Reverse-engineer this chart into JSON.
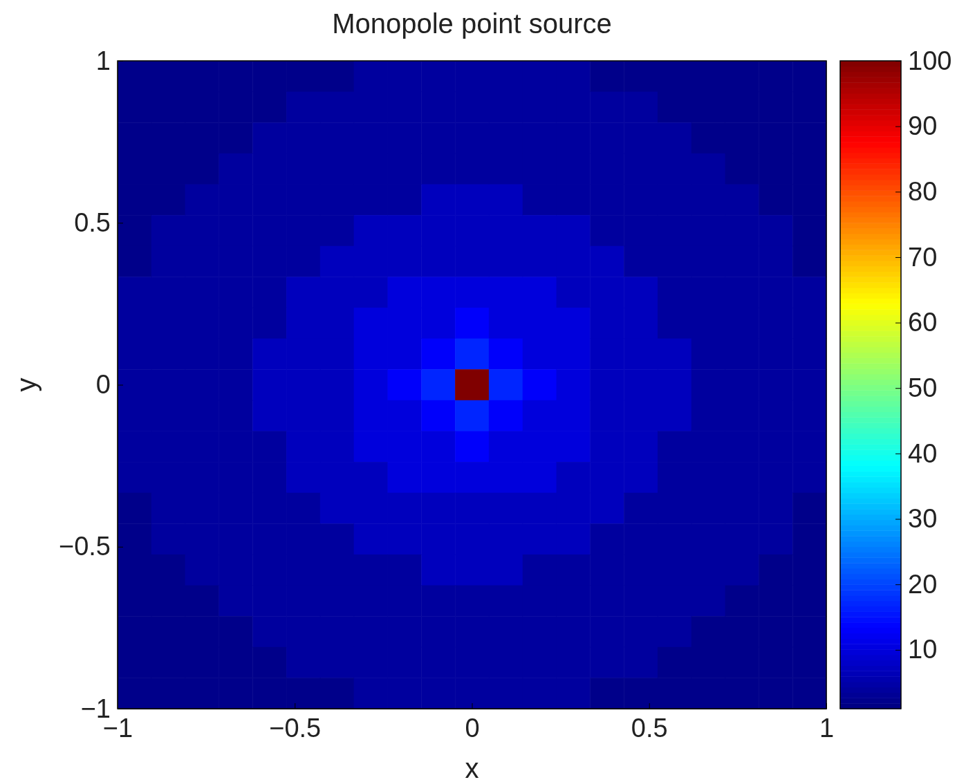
{
  "chart_data": {
    "type": "heatmap",
    "title": "Monopole point source",
    "xlabel": "x",
    "ylabel": "y",
    "xlim": [
      -1,
      1
    ],
    "ylim": [
      -1,
      1
    ],
    "xticks": [
      {
        "value": -1,
        "label": "−1"
      },
      {
        "value": -0.5,
        "label": "−0.5"
      },
      0,
      0.5,
      1
    ],
    "yticks": [
      {
        "value": -1,
        "label": "−1"
      },
      {
        "value": -0.5,
        "label": "−0.5"
      },
      0,
      0.5,
      1
    ],
    "clim": [
      1,
      100
    ],
    "cticks": [
      10,
      20,
      30,
      40,
      50,
      60,
      70,
      80,
      90,
      100
    ],
    "cells": [
      [
        2,
        2,
        2,
        2,
        2,
        2,
        2,
        4,
        4,
        4,
        4,
        4,
        4,
        4,
        2,
        2,
        2,
        2,
        2,
        2,
        2
      ],
      [
        2,
        2,
        2,
        2,
        2,
        4,
        4,
        4,
        4,
        4,
        4,
        4,
        4,
        4,
        4,
        4,
        2,
        2,
        2,
        2,
        2
      ],
      [
        2,
        2,
        2,
        2,
        4,
        4,
        4,
        4,
        4,
        4,
        4,
        4,
        4,
        4,
        4,
        4,
        4,
        2,
        2,
        2,
        2
      ],
      [
        2,
        2,
        2,
        4,
        4,
        4,
        4,
        4,
        4,
        4,
        4,
        4,
        4,
        4,
        4,
        4,
        4,
        4,
        2,
        2,
        2
      ],
      [
        2,
        2,
        4,
        4,
        4,
        4,
        4,
        4,
        4,
        7,
        7,
        7,
        4,
        4,
        4,
        4,
        4,
        4,
        4,
        2,
        2
      ],
      [
        2,
        4,
        4,
        4,
        4,
        4,
        4,
        7,
        7,
        7,
        7,
        7,
        7,
        7,
        4,
        4,
        4,
        4,
        4,
        4,
        2
      ],
      [
        2,
        4,
        4,
        4,
        4,
        4,
        7,
        7,
        7,
        7,
        7,
        7,
        7,
        7,
        7,
        4,
        4,
        4,
        4,
        4,
        2
      ],
      [
        4,
        4,
        4,
        4,
        4,
        7,
        7,
        7,
        10,
        10,
        10,
        10,
        10,
        7,
        7,
        7,
        4,
        4,
        4,
        4,
        4
      ],
      [
        4,
        4,
        4,
        4,
        4,
        7,
        7,
        10,
        10,
        10,
        13,
        10,
        10,
        10,
        7,
        7,
        4,
        4,
        4,
        4,
        4
      ],
      [
        4,
        4,
        4,
        4,
        7,
        7,
        7,
        10,
        10,
        13,
        17,
        13,
        10,
        10,
        7,
        7,
        7,
        4,
        4,
        4,
        4
      ],
      [
        4,
        4,
        4,
        4,
        7,
        7,
        7,
        10,
        13,
        17,
        100,
        17,
        13,
        10,
        7,
        7,
        7,
        4,
        4,
        4,
        4
      ],
      [
        4,
        4,
        4,
        4,
        7,
        7,
        7,
        10,
        10,
        13,
        17,
        13,
        10,
        10,
        7,
        7,
        7,
        4,
        4,
        4,
        4
      ],
      [
        4,
        4,
        4,
        4,
        4,
        7,
        7,
        10,
        10,
        10,
        13,
        10,
        10,
        10,
        7,
        7,
        4,
        4,
        4,
        4,
        4
      ],
      [
        4,
        4,
        4,
        4,
        4,
        7,
        7,
        7,
        10,
        10,
        10,
        10,
        10,
        7,
        7,
        7,
        4,
        4,
        4,
        4,
        4
      ],
      [
        2,
        4,
        4,
        4,
        4,
        4,
        7,
        7,
        7,
        7,
        7,
        7,
        7,
        7,
        7,
        4,
        4,
        4,
        4,
        4,
        2
      ],
      [
        2,
        4,
        4,
        4,
        4,
        4,
        4,
        7,
        7,
        7,
        7,
        7,
        7,
        7,
        4,
        4,
        4,
        4,
        4,
        4,
        2
      ],
      [
        2,
        2,
        4,
        4,
        4,
        4,
        4,
        4,
        4,
        7,
        7,
        7,
        4,
        4,
        4,
        4,
        4,
        4,
        4,
        2,
        2
      ],
      [
        2,
        2,
        2,
        4,
        4,
        4,
        4,
        4,
        4,
        4,
        4,
        4,
        4,
        4,
        4,
        4,
        4,
        4,
        2,
        2,
        2
      ],
      [
        2,
        2,
        2,
        2,
        4,
        4,
        4,
        4,
        4,
        4,
        4,
        4,
        4,
        4,
        4,
        4,
        4,
        2,
        2,
        2,
        2
      ],
      [
        2,
        2,
        2,
        2,
        2,
        4,
        4,
        4,
        4,
        4,
        4,
        4,
        4,
        4,
        4,
        4,
        2,
        2,
        2,
        2,
        2
      ],
      [
        2,
        2,
        2,
        2,
        2,
        2,
        2,
        4,
        4,
        4,
        4,
        4,
        4,
        4,
        2,
        2,
        2,
        2,
        2,
        2,
        2
      ]
    ]
  }
}
